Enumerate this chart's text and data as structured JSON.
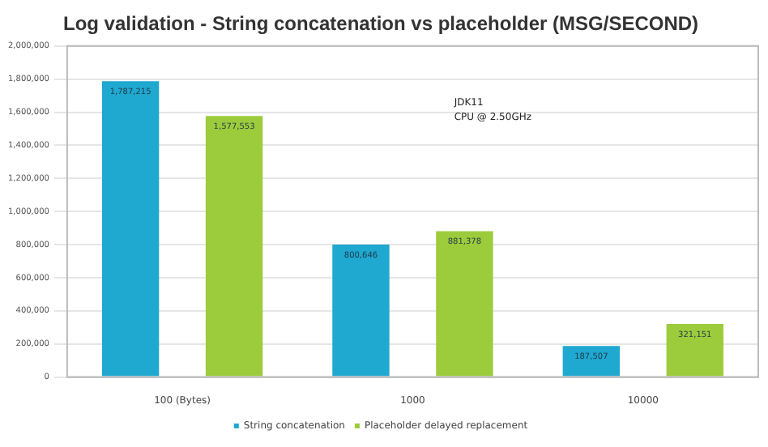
{
  "chart_data": {
    "type": "bar",
    "title": "Log validation - String concatenation vs placeholder (MSG/SECOND)",
    "categories": [
      "100 (Bytes)",
      "1000",
      "10000"
    ],
    "series": [
      {
        "name": "String concatenation",
        "color": "#1fa8d0",
        "values": [
          1787215,
          800646,
          187507
        ],
        "value_labels": [
          "1,787,215",
          "800,646",
          "187,507"
        ]
      },
      {
        "name": "Placeholder delayed replacement",
        "color": "#9ccc3c",
        "values": [
          1577553,
          881378,
          321151
        ],
        "value_labels": [
          "1,577,553",
          "881,378",
          "321,151"
        ]
      }
    ],
    "ylim": [
      0,
      2000000
    ],
    "yticks": [
      0,
      {
        "value": 200000,
        "label": "200,000"
      },
      {
        "value": 400000,
        "label": "400,000"
      },
      {
        "value": 600000,
        "label": "600,000"
      },
      {
        "value": 800000,
        "label": "800,000"
      },
      {
        "value": 1000000,
        "label": "1,000,000"
      },
      {
        "value": 1200000,
        "label": "1,200,000"
      },
      {
        "value": 1400000,
        "label": "1,400,000"
      },
      {
        "value": 1600000,
        "label": "1,600,000"
      },
      {
        "value": 1800000,
        "label": "1,800,000"
      },
      {
        "value": 2000000,
        "label": "2,000,000"
      }
    ],
    "grid": "y",
    "legend": "bottom",
    "annotations": [
      "JDK11",
      "CPU @ 2.50GHz"
    ]
  }
}
